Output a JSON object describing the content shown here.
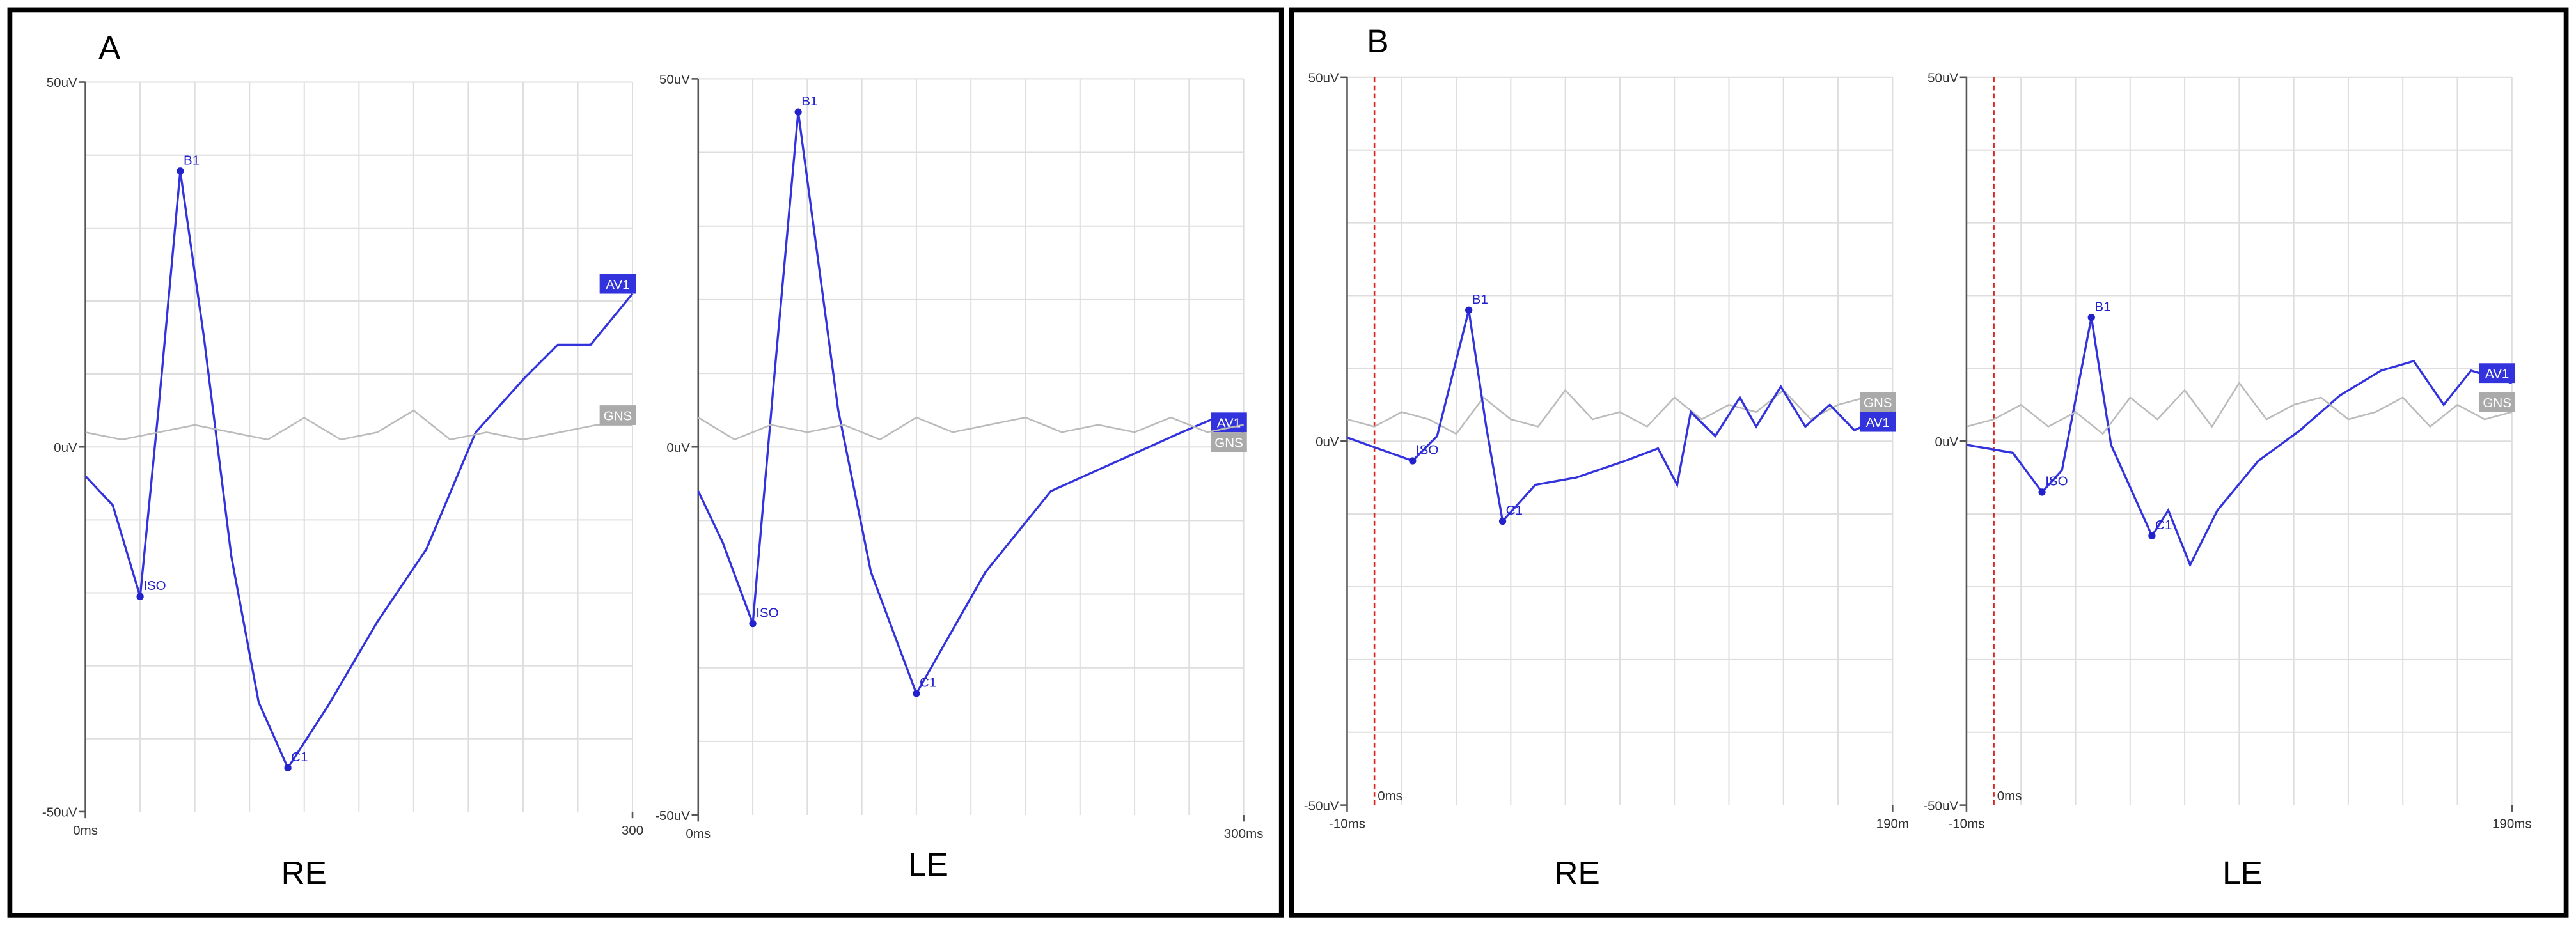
{
  "panels": [
    "A",
    "B"
  ],
  "chart_data": [
    {
      "type": "line",
      "caption": "RE",
      "xlim": [
        0,
        300
      ],
      "ylim": [
        -50,
        50
      ],
      "xticks": [
        {
          "value": 0,
          "label": "0ms"
        },
        {
          "value": 300,
          "label": "300"
        }
      ],
      "yticks": [
        {
          "value": 50,
          "label": "50uV"
        },
        {
          "value": 0,
          "label": "0uV"
        },
        {
          "value": -50,
          "label": "-50uV"
        }
      ],
      "series": [
        {
          "name": "AV1",
          "color": "#3333dd",
          "x": [
            0,
            15,
            30,
            40,
            52,
            65,
            80,
            95,
            111,
            133,
            160,
            187,
            214,
            241,
            259,
            277,
            300
          ],
          "values": [
            -4,
            -8,
            -20.5,
            5,
            37.8,
            15,
            -15,
            -35,
            -44,
            -35.5,
            -24,
            -14,
            2,
            9.5,
            14,
            14,
            21
          ]
        },
        {
          "name": "GNS",
          "color": "#bbbbbb",
          "x": [
            0,
            20,
            40,
            60,
            80,
            100,
            120,
            140,
            160,
            180,
            200,
            220,
            240,
            260,
            280,
            300
          ],
          "values": [
            2,
            1,
            2,
            3,
            2,
            1,
            4,
            1,
            2,
            5,
            1,
            2,
            1,
            2,
            3,
            3
          ]
        }
      ],
      "annotations": [
        {
          "text": "ISO",
          "x": 30,
          "y": -20.5
        },
        {
          "text": "B1",
          "x": 52,
          "y": 37.8
        },
        {
          "text": "C1",
          "x": 111,
          "y": -44
        }
      ]
    },
    {
      "type": "line",
      "caption": "LE",
      "xlim": [
        0,
        300
      ],
      "ylim": [
        -50,
        50
      ],
      "xticks": [
        {
          "value": 0,
          "label": "0ms"
        },
        {
          "value": 300,
          "label": "300ms"
        }
      ],
      "yticks": [
        {
          "value": 50,
          "label": "50uV"
        },
        {
          "value": 0,
          "label": "0uV"
        },
        {
          "value": -50,
          "label": "-50uV"
        }
      ],
      "series": [
        {
          "name": "AV1",
          "color": "#3333dd",
          "x": [
            0,
            13.5,
            30,
            42,
            55,
            77,
            95,
            120,
            158,
            194,
            230,
            266,
            285,
            300
          ],
          "values": [
            -6,
            -13,
            -24,
            10,
            45.5,
            5,
            -17,
            -33.5,
            -17,
            -6,
            -2,
            2,
            4,
            2
          ]
        },
        {
          "name": "GNS",
          "color": "#bbbbbb",
          "x": [
            0,
            20,
            40,
            60,
            80,
            100,
            120,
            140,
            160,
            180,
            200,
            220,
            240,
            260,
            280,
            300
          ],
          "values": [
            4,
            1,
            3,
            2,
            3,
            1,
            4,
            2,
            3,
            4,
            2,
            3,
            2,
            4,
            2,
            3
          ]
        }
      ],
      "annotations": [
        {
          "text": "ISO",
          "x": 30,
          "y": -24
        },
        {
          "text": "B1",
          "x": 55,
          "y": 45.5
        },
        {
          "text": "C1",
          "x": 120,
          "y": -33.5
        }
      ]
    },
    {
      "type": "line",
      "caption": "RE",
      "xlim": [
        -10,
        190
      ],
      "ylim": [
        -50,
        50
      ],
      "xticks": [
        {
          "value": -10,
          "label": "-10ms"
        },
        {
          "value": 190,
          "label": "190m"
        }
      ],
      "yticks": [
        {
          "value": 50,
          "label": "50uV"
        },
        {
          "value": 0,
          "label": "0uV"
        },
        {
          "value": -50,
          "label": "-50uV"
        }
      ],
      "reference_line": {
        "x": 0,
        "label": "0ms",
        "color": "#dd2222"
      },
      "series": [
        {
          "name": "GNS",
          "color": "#bbbbbb",
          "x": [
            -10,
            0,
            10,
            20,
            30,
            40,
            50,
            60,
            70,
            80,
            90,
            100,
            110,
            120,
            130,
            140,
            150,
            160,
            170,
            180,
            190
          ],
          "values": [
            3,
            2,
            4,
            3,
            1,
            6,
            3,
            2,
            7,
            3,
            4,
            2,
            6,
            3,
            5,
            4,
            7,
            3,
            5,
            6,
            4
          ]
        },
        {
          "name": "AV1",
          "color": "#3333dd",
          "x": [
            -10,
            14,
            23,
            34.6,
            41,
            47,
            59,
            74,
            92,
            104,
            111,
            116,
            125,
            134,
            140,
            149,
            158,
            167,
            176,
            190
          ],
          "values": [
            0.5,
            -2.7,
            0.7,
            18,
            2,
            -11,
            -6,
            -5,
            -2.7,
            -1,
            -6,
            4,
            0.7,
            6,
            2,
            7.5,
            2,
            5,
            1.5,
            4
          ]
        }
      ],
      "annotations": [
        {
          "text": "ISO",
          "x": 14,
          "y": -2.7
        },
        {
          "text": "B1",
          "x": 34.6,
          "y": 18
        },
        {
          "text": "C1",
          "x": 47,
          "y": -11
        }
      ]
    },
    {
      "type": "line",
      "caption": "LE",
      "xlim": [
        -10,
        190
      ],
      "ylim": [
        -50,
        50
      ],
      "xticks": [
        {
          "value": -10,
          "label": "-10ms"
        },
        {
          "value": 190,
          "label": "190ms"
        }
      ],
      "yticks": [
        {
          "value": 50,
          "label": "50uV"
        },
        {
          "value": 0,
          "label": "0uV"
        },
        {
          "value": -50,
          "label": "-50uV"
        }
      ],
      "reference_line": {
        "x": 0,
        "label": "0ms",
        "color": "#dd2222"
      },
      "series": [
        {
          "name": "AV1",
          "color": "#3333dd",
          "x": [
            -10,
            7,
            17.7,
            25,
            35.8,
            43,
            58,
            64,
            72,
            82,
            97,
            112,
            127,
            142,
            154,
            165,
            175,
            190
          ],
          "values": [
            -0.5,
            -1.6,
            -7,
            -4,
            17,
            -0.5,
            -13,
            -9.5,
            -17,
            -9.5,
            -2.7,
            1.4,
            6.3,
            9.7,
            11,
            5,
            9.7,
            8
          ]
        },
        {
          "name": "GNS",
          "color": "#bbbbbb",
          "x": [
            -10,
            0,
            10,
            20,
            30,
            40,
            50,
            60,
            70,
            80,
            90,
            100,
            110,
            120,
            130,
            140,
            150,
            160,
            170,
            180,
            190
          ],
          "values": [
            2,
            3,
            5,
            2,
            4,
            1,
            6,
            3,
            7,
            2,
            8,
            3,
            5,
            6,
            3,
            4,
            6,
            2,
            5,
            3,
            4
          ]
        }
      ],
      "annotations": [
        {
          "text": "ISO",
          "x": 17.7,
          "y": -7
        },
        {
          "text": "B1",
          "x": 35.8,
          "y": 17
        },
        {
          "text": "C1",
          "x": 58,
          "y": -13
        }
      ]
    }
  ]
}
